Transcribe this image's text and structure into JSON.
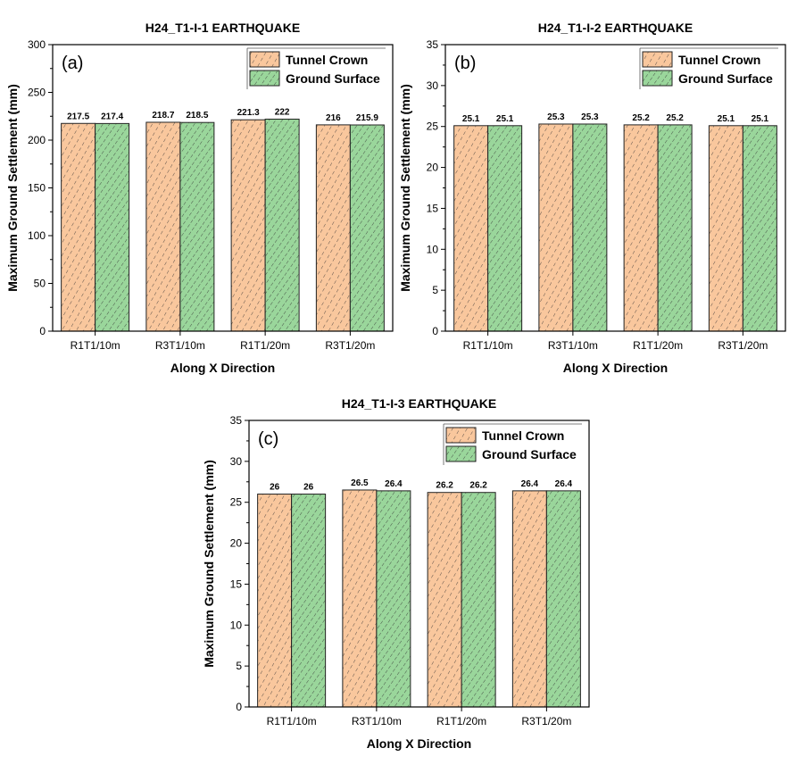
{
  "legend": [
    "Tunnel Crown",
    "Ground Surface"
  ],
  "colors": {
    "tunnel_crown": "#f9c79d",
    "ground_surface": "#9ad69b",
    "hatch": "#333333",
    "axis": "#000000"
  },
  "chart_data": [
    {
      "type": "bar",
      "panel_label": "(a)",
      "title": "H24_T1-I-1 EARTHQUAKE",
      "xlabel": "Along X Direction",
      "ylabel": "Maximum Ground Settlement (mm)",
      "ylim": [
        0,
        300
      ],
      "yticks": [
        0,
        50,
        100,
        150,
        200,
        250,
        300
      ],
      "categories": [
        "R1T1/10m",
        "R3T1/10m",
        "R1T1/20m",
        "R3T1/20m"
      ],
      "series": [
        {
          "name": "Tunnel Crown",
          "values": [
            217.5,
            218.7,
            221.3,
            216
          ]
        },
        {
          "name": "Ground Surface",
          "values": [
            217.4,
            218.5,
            222,
            215.9
          ]
        }
      ],
      "legend_position": "top-right"
    },
    {
      "type": "bar",
      "panel_label": "(b)",
      "title": "H24_T1-I-2 EARTHQUAKE",
      "xlabel": "Along X Direction",
      "ylabel": "Maximum Ground Settlement (mm)",
      "ylim": [
        0,
        35
      ],
      "yticks": [
        0,
        5,
        10,
        15,
        20,
        25,
        30,
        35
      ],
      "categories": [
        "R1T1/10m",
        "R3T1/10m",
        "R1T1/20m",
        "R3T1/20m"
      ],
      "series": [
        {
          "name": "Tunnel Crown",
          "values": [
            25.1,
            25.3,
            25.2,
            25.1
          ]
        },
        {
          "name": "Ground Surface",
          "values": [
            25.1,
            25.3,
            25.2,
            25.1
          ]
        }
      ],
      "legend_position": "top-right"
    },
    {
      "type": "bar",
      "panel_label": "(c)",
      "title": "H24_T1-I-3 EARTHQUAKE",
      "xlabel": "Along X Direction",
      "ylabel": "Maximum Ground Settlement (mm)",
      "ylim": [
        0,
        35
      ],
      "yticks": [
        0,
        5,
        10,
        15,
        20,
        25,
        30,
        35
      ],
      "categories": [
        "R1T1/10m",
        "R3T1/10m",
        "R1T1/20m",
        "R3T1/20m"
      ],
      "series": [
        {
          "name": "Tunnel Crown",
          "values": [
            26,
            26.5,
            26.2,
            26.4
          ]
        },
        {
          "name": "Ground Surface",
          "values": [
            26,
            26.4,
            26.2,
            26.4
          ]
        }
      ],
      "legend_position": "top-right"
    }
  ]
}
